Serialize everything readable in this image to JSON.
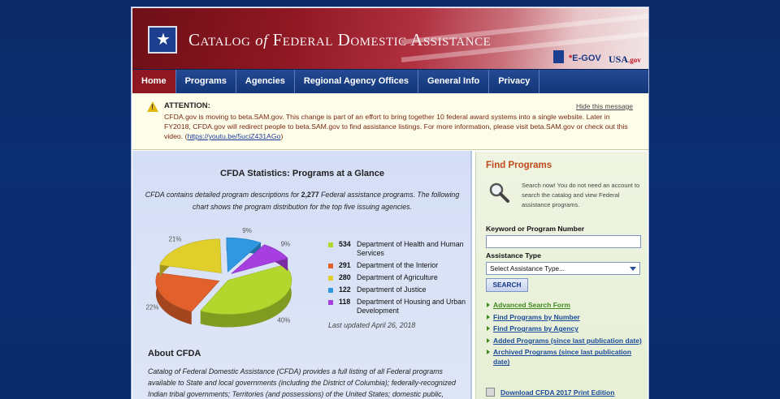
{
  "header": {
    "title_part1": "Catalog",
    "title_of": "of",
    "title_part2": "Federal Domestic Assistance",
    "egov_star": "*",
    "egov_label": "E-GOV",
    "usagov_label": "USA",
    "usagov_suffix": ".gov"
  },
  "nav": {
    "items": [
      "Home",
      "Programs",
      "Agencies",
      "Regional Agency Offices",
      "General Info",
      "Privacy"
    ]
  },
  "notice": {
    "title": "ATTENTION:",
    "hide_label": "Hide this message",
    "body": "CFDA.gov is moving to beta.SAM.gov. This change is part of an effort to bring together 10 federal award systems into a single website. Later in FY2018, CFDA.gov will redirect people to beta.SAM.gov to find assistance listings. For more information, please visit beta.SAM.gov or check out this video. (",
    "link": "https://youtu.be/5uciZ431AGo",
    "close_paren": ")"
  },
  "stats": {
    "heading": "CFDA Statistics: Programs at a Glance",
    "intro_pre": "CFDA contains detailed program descriptions for ",
    "intro_count": "2,277",
    "intro_post": " Federal assistance programs. The following chart shows the program distribution for the top five issuing agencies.",
    "updated": "Last updated April 26, 2018"
  },
  "chart_data": {
    "type": "pie",
    "title": "Top five issuing agencies",
    "categories": [
      "Department of Health and Human Services",
      "Department of the Interior",
      "Department of Agriculture",
      "Department of Justice",
      "Department of Housing and Urban Development"
    ],
    "values": [
      534,
      291,
      280,
      122,
      118
    ],
    "percent_labels": [
      "40%",
      "22%",
      "21%",
      "9%",
      "9%"
    ],
    "colors": [
      "#b3d72c",
      "#e2602b",
      "#e0cf2a",
      "#2f98e0",
      "#a63ee0"
    ]
  },
  "about": {
    "heading": "About CFDA",
    "text": "Catalog of Federal Domestic Assistance (CFDA) provides a full listing of all Federal programs available to State and local governments (including the District of Columbia); federally-recognized Indian tribal governments; Territories (and possessions) of the United States; domestic public, quasi-public, and private profit and nonprofit"
  },
  "sidebar": {
    "heading": "Find Programs",
    "note": "Search now! You do not need an account to search the catalog and view Federal assistance programs.",
    "keyword_label": "Keyword or Program Number",
    "keyword_value": "",
    "type_label": "Assistance Type",
    "type_selected": "Select Assistance Type...",
    "search_button": "SEARCH",
    "links": [
      "Advanced Search Form",
      "Find Programs by Number",
      "Find Programs by Agency",
      "Added Programs (since last publication date)",
      "Archived Programs (since last publication date)"
    ],
    "print_link": "Download CFDA 2017 Print Edition"
  }
}
